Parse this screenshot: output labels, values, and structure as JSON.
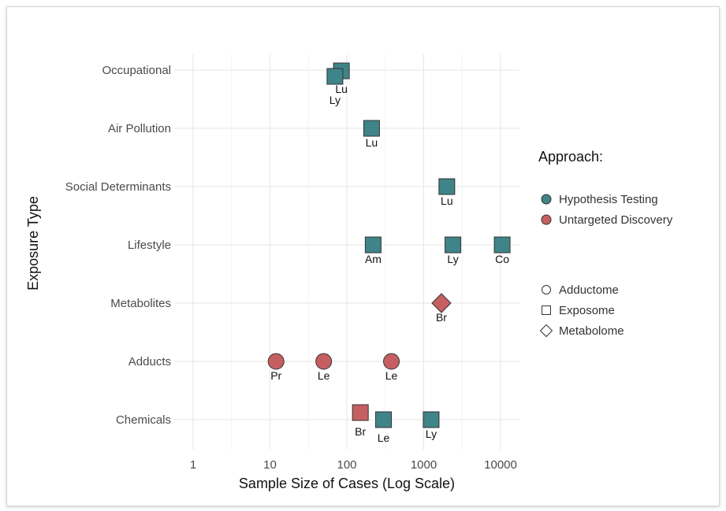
{
  "chart_data": {
    "type": "scatter",
    "title": "",
    "xlabel": "Sample Size of Cases (Log Scale)",
    "ylabel": "Exposure Type",
    "x_scale": "log10",
    "xlim": [
      1,
      10000
    ],
    "x_ticks": [
      {
        "value": 1,
        "label": "1"
      },
      {
        "value": 10,
        "label": "10"
      },
      {
        "value": 100,
        "label": "100"
      },
      {
        "value": 1000,
        "label": "1000"
      },
      {
        "value": 10000,
        "label": "10000"
      }
    ],
    "categories": [
      "Occupational",
      "Air Pollution",
      "Social Determinants",
      "Lifestyle",
      "Metabolites",
      "Adducts",
      "Chemicals"
    ],
    "grid": true,
    "legend_placement": "right",
    "legend": {
      "approach_title": "Approach:",
      "approach": [
        {
          "name": "Hypothesis Testing",
          "color": "#3f8488"
        },
        {
          "name": "Untargeted Discovery",
          "color": "#c65f62"
        }
      ],
      "shape_types": [
        {
          "name": "Adductome",
          "shape": "circle"
        },
        {
          "name": "Exposome",
          "shape": "square"
        },
        {
          "name": "Metabolome",
          "shape": "diamond"
        }
      ]
    },
    "points": [
      {
        "category": "Occupational",
        "x": 85,
        "label": "Lu",
        "approach": "Hypothesis Testing",
        "shape": "square"
      },
      {
        "category": "Occupational",
        "x": 70,
        "label": "Ly",
        "approach": "Hypothesis Testing",
        "shape": "square"
      },
      {
        "category": "Air Pollution",
        "x": 210,
        "label": "Lu",
        "approach": "Hypothesis Testing",
        "shape": "square"
      },
      {
        "category": "Social Determinants",
        "x": 2000,
        "label": "Lu",
        "approach": "Hypothesis Testing",
        "shape": "square"
      },
      {
        "category": "Lifestyle",
        "x": 220,
        "label": "Am",
        "approach": "Hypothesis Testing",
        "shape": "square"
      },
      {
        "category": "Lifestyle",
        "x": 2400,
        "label": "Ly",
        "approach": "Hypothesis Testing",
        "shape": "square"
      },
      {
        "category": "Lifestyle",
        "x": 10500,
        "label": "Co",
        "approach": "Hypothesis Testing",
        "shape": "square"
      },
      {
        "category": "Metabolites",
        "x": 1700,
        "label": "Br",
        "approach": "Untargeted Discovery",
        "shape": "diamond"
      },
      {
        "category": "Adducts",
        "x": 12,
        "label": "Pr",
        "approach": "Untargeted Discovery",
        "shape": "circle"
      },
      {
        "category": "Adducts",
        "x": 50,
        "label": "Le",
        "approach": "Untargeted Discovery",
        "shape": "circle"
      },
      {
        "category": "Adducts",
        "x": 380,
        "label": "Le",
        "approach": "Untargeted Discovery",
        "shape": "circle"
      },
      {
        "category": "Chemicals",
        "x": 150,
        "label": "Br",
        "approach": "Untargeted Discovery",
        "shape": "square"
      },
      {
        "category": "Chemicals",
        "x": 300,
        "label": "Le",
        "approach": "Hypothesis Testing",
        "shape": "square"
      },
      {
        "category": "Chemicals",
        "x": 1250,
        "label": "Ly",
        "approach": "Hypothesis Testing",
        "shape": "square"
      }
    ]
  }
}
